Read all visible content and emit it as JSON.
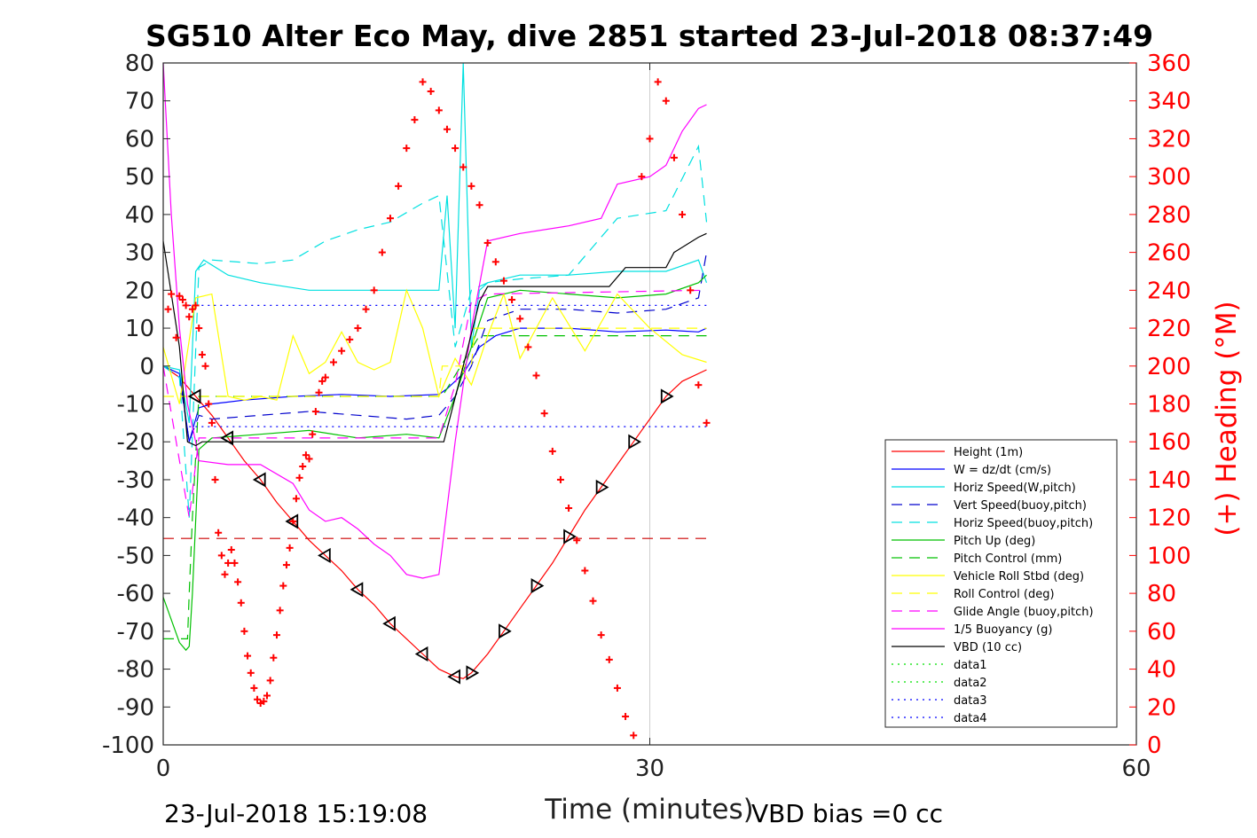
{
  "chart_data": {
    "type": "line",
    "title": "SG510 Alter Eco May, dive 2851 started 23-Jul-2018 08:37:49",
    "xlabel": "Time (minutes)",
    "ylabel": "",
    "y2label": "(+) Heading (°M)",
    "xlim": [
      0,
      60
    ],
    "ylim": [
      -100,
      80
    ],
    "y2lim": [
      0,
      360
    ],
    "x_ticks": [
      "0",
      "30",
      "60"
    ],
    "y_ticks": [
      "80",
      "70",
      "60",
      "50",
      "40",
      "30",
      "20",
      "10",
      "0",
      "-10",
      "-20",
      "-30",
      "-40",
      "-50",
      "-60",
      "-70",
      "-80",
      "-90",
      "-100"
    ],
    "y2_ticks": [
      "360",
      "340",
      "320",
      "300",
      "280",
      "260",
      "240",
      "220",
      "200",
      "180",
      "160",
      "140",
      "120",
      "100",
      "80",
      "60",
      "40",
      "20",
      "0"
    ],
    "footer_left": "23-Jul-2018 15:19:08",
    "footer_right": "VBD bias =0 cc",
    "legend_position": "lower-right",
    "series": [
      {
        "name": "Height (1m)",
        "color": "#ff0000",
        "style": "solid",
        "x": [
          0,
          1,
          2,
          3,
          4,
          5,
          6,
          7,
          8,
          9,
          10,
          11,
          12,
          13,
          14,
          15,
          16,
          17,
          18,
          18.5,
          19,
          20,
          21,
          22,
          23,
          24,
          25,
          26,
          27,
          28,
          29,
          30,
          31,
          32,
          33.5
        ],
        "y": [
          0,
          -3,
          -8,
          -13,
          -19,
          -25,
          -30,
          -36,
          -41,
          -46,
          -50,
          -54,
          -59,
          -63,
          -68,
          -72,
          -76,
          -80,
          -82,
          -82.5,
          -81,
          -76,
          -70,
          -64,
          -58,
          -52,
          -45,
          -38,
          -32,
          -26,
          -20,
          -14,
          -8,
          -4,
          -1
        ]
      },
      {
        "name": "W = dz/dt (cm/s)",
        "color": "#0000ff",
        "style": "solid",
        "x": [
          0,
          1,
          1.6,
          2.2,
          3,
          5,
          8,
          11,
          14,
          17,
          17.5,
          18.5,
          19.5,
          20.5,
          22,
          25,
          28,
          31,
          33,
          33.5
        ],
        "y": [
          0,
          -2,
          -20,
          -11,
          -10,
          -9,
          -8,
          -7.5,
          -8,
          -7.5,
          -6,
          -2,
          5,
          8,
          10,
          10,
          9,
          9.5,
          9,
          10
        ]
      },
      {
        "name": "Horiz Speed(W,pitch)",
        "color": "#00e0e0",
        "style": "solid",
        "x": [
          0,
          1,
          1.6,
          2,
          2.5,
          4,
          6,
          9,
          12,
          15,
          17,
          17.5,
          18,
          18.5,
          19,
          19.5,
          20,
          22,
          25,
          28,
          31,
          33,
          33.5
        ],
        "y": [
          0,
          -1,
          -15,
          25,
          28,
          24,
          22,
          20,
          20,
          20,
          20,
          45,
          10,
          80,
          5,
          20,
          22,
          24,
          24,
          25,
          25,
          28,
          22
        ]
      },
      {
        "name": "Vert Speed(buoy,pitch)",
        "color": "#0000cd",
        "style": "dash",
        "x": [
          0,
          1,
          1.6,
          2.2,
          3,
          6,
          9,
          12,
          15,
          17,
          18,
          19,
          20,
          22,
          25,
          28,
          31,
          33,
          33.5
        ],
        "y": [
          0,
          -3,
          -20,
          -13,
          -14,
          -13,
          -12,
          -13,
          -14,
          -13,
          -8,
          0,
          12,
          15,
          15,
          14,
          15,
          18,
          30
        ]
      },
      {
        "name": "Horiz Speed(buoy,pitch)",
        "color": "#00e0e0",
        "style": "dash",
        "x": [
          0,
          1,
          1.6,
          2.2,
          3,
          6,
          8,
          10,
          12,
          14,
          16,
          17,
          18,
          19,
          20,
          22,
          25,
          28,
          31,
          33,
          33.5
        ],
        "y": [
          0,
          -3,
          -40,
          26,
          28,
          27,
          28,
          33,
          36,
          38,
          43,
          45,
          5,
          20,
          22,
          23,
          24,
          39,
          41,
          58,
          38
        ]
      },
      {
        "name": "Pitch Up (deg)",
        "color": "#00c000",
        "style": "solid",
        "x": [
          0,
          1,
          1.4,
          1.6,
          1.8,
          2.2,
          3,
          6,
          9,
          12,
          15,
          17,
          18,
          19,
          20,
          22,
          25,
          28,
          31,
          33,
          33.5
        ],
        "y": [
          -61,
          -73,
          -75,
          -74,
          -60,
          -22,
          -19,
          -18,
          -17,
          -19,
          -18,
          -19,
          -8,
          5,
          18,
          20,
          19,
          18,
          19,
          22,
          24
        ]
      },
      {
        "name": "Pitch Control (mm)",
        "color": "#00c000",
        "style": "dash",
        "x": [
          0,
          1.5,
          1.6,
          1.8,
          2.2,
          17,
          17.2,
          19.5,
          19.7,
          33.5
        ],
        "y": [
          -72,
          -72,
          -60,
          -40,
          -8,
          -8,
          -8,
          8,
          8,
          8
        ]
      },
      {
        "name": "Vehicle Roll Stbd (deg)",
        "color": "#ffff00",
        "style": "solid",
        "x": [
          0,
          1,
          2,
          3,
          4,
          5,
          6,
          7,
          8,
          9,
          10,
          11,
          12,
          13,
          14,
          15,
          16,
          17,
          18,
          19,
          20,
          21,
          22,
          24,
          26,
          28,
          30,
          32,
          33.5
        ],
        "y": [
          5,
          -10,
          18,
          19,
          -8,
          -9,
          -8,
          -9,
          8,
          -2,
          1,
          9,
          1,
          -1,
          1,
          20,
          10,
          -8,
          2,
          -5,
          8,
          19,
          2,
          18,
          4,
          19,
          10,
          3,
          1
        ]
      },
      {
        "name": "Roll Control (deg)",
        "color": "#ffff00",
        "style": "dash",
        "x": [
          0,
          2,
          2.2,
          17,
          17.2,
          19,
          19.2,
          33.5
        ],
        "y": [
          -8,
          -8,
          -8,
          -8,
          0,
          0,
          10,
          10
        ]
      },
      {
        "name": "Glide Angle (buoy,pitch)",
        "color": "#ff00ff",
        "style": "dash",
        "x": [
          0,
          1.6,
          2.2,
          17,
          18,
          19,
          20,
          33.5
        ],
        "y": [
          0,
          -40,
          -19,
          -19,
          -5,
          17,
          19,
          20
        ]
      },
      {
        "name": "1/5 Buoyancy (g)",
        "color": "#ff00ff",
        "style": "solid",
        "x": [
          0,
          0.5,
          1,
          1.5,
          2,
          2.2,
          4,
          6,
          8,
          9,
          10,
          11,
          12,
          13,
          14,
          15,
          16,
          17,
          18,
          19,
          20,
          22,
          25,
          27,
          28,
          30,
          31,
          32,
          33,
          33.5
        ],
        "y": [
          80,
          40,
          10,
          -10,
          -20,
          -25,
          -26,
          -26,
          -31,
          -38,
          -41,
          -40,
          -43,
          -47,
          -50,
          -55,
          -56,
          -55,
          -20,
          10,
          33,
          35,
          37,
          39,
          48,
          50,
          53,
          62,
          68,
          69
        ]
      },
      {
        "name": "VBD (10 cc)",
        "color": "#000000",
        "style": "solid",
        "x": [
          0,
          1,
          1.5,
          2,
          2.4,
          4,
          8,
          12,
          16,
          17.3,
          18.5,
          19.5,
          20,
          25,
          27.5,
          28.5,
          31,
          31.5,
          33,
          33.5
        ],
        "y": [
          33,
          5,
          -20,
          -21,
          -20,
          -20,
          -20,
          -20,
          -20,
          -20,
          0,
          17,
          21,
          21,
          21,
          26,
          26,
          30,
          34,
          35
        ]
      },
      {
        "name": "data1",
        "color": "#00e000",
        "style": "dot",
        "x": [],
        "y": []
      },
      {
        "name": "data2",
        "color": "#00e000",
        "style": "dot",
        "x": [],
        "y": []
      },
      {
        "name": "data3",
        "color": "#0000ff",
        "style": "dot",
        "x": [
          1.6,
          33.5
        ],
        "y": [
          16,
          16
        ]
      },
      {
        "name": "data4",
        "color": "#0000ff",
        "style": "dot",
        "x": [
          1.6,
          33.5
        ],
        "y": [
          -16,
          -16
        ]
      }
    ],
    "reference_lines": [
      {
        "color": "#cc0000",
        "style": "dash",
        "y": -45.5,
        "x": [
          0,
          33.5
        ]
      }
    ],
    "heading_points": {
      "axis": "right",
      "color": "#ff0000",
      "marker": "+",
      "x": [
        0.3,
        0.5,
        0.8,
        1.0,
        1.2,
        1.4,
        1.6,
        1.8,
        2.0,
        2.2,
        2.4,
        2.6,
        2.8,
        3.0,
        3.2,
        3.4,
        3.6,
        3.8,
        4.0,
        4.2,
        4.4,
        4.6,
        4.8,
        5.0,
        5.2,
        5.4,
        5.6,
        5.8,
        6.0,
        6.2,
        6.4,
        6.6,
        6.8,
        7.0,
        7.2,
        7.4,
        7.6,
        7.8,
        8.0,
        8.2,
        8.4,
        8.6,
        8.8,
        9.0,
        9.2,
        9.4,
        9.6,
        9.8,
        10.0,
        10.5,
        11.0,
        11.5,
        12.0,
        12.5,
        13.0,
        13.5,
        14.0,
        14.5,
        15.0,
        15.5,
        16.0,
        16.5,
        17.0,
        17.5,
        18.0,
        18.5,
        19.0,
        19.5,
        20.0,
        20.5,
        21.0,
        21.5,
        22.0,
        22.5,
        23.0,
        23.5,
        24.0,
        24.5,
        25.0,
        25.5,
        26.0,
        26.5,
        27.0,
        27.5,
        28.0,
        28.5,
        29.0,
        29.5,
        30.0,
        30.5,
        31.0,
        31.5,
        32.0,
        32.5,
        33.0,
        33.5
      ],
      "y": [
        230,
        238,
        215,
        237,
        235,
        232,
        226,
        230,
        232,
        220,
        206,
        200,
        180,
        170,
        140,
        112,
        100,
        90,
        96,
        103,
        96,
        86,
        75,
        60,
        47,
        38,
        30,
        24,
        22,
        23,
        26,
        34,
        46,
        58,
        71,
        84,
        95,
        104,
        118,
        130,
        141,
        147,
        153,
        151,
        164,
        176,
        186,
        192,
        194,
        202,
        208,
        214,
        220,
        230,
        240,
        260,
        278,
        295,
        315,
        330,
        350,
        345,
        335,
        325,
        315,
        305,
        295,
        285,
        265,
        255,
        245,
        235,
        225,
        210,
        195,
        175,
        155,
        140,
        125,
        108,
        92,
        76,
        58,
        45,
        30,
        15,
        5,
        300,
        320,
        350,
        340,
        310,
        280,
        240,
        190,
        170
      ]
    }
  }
}
